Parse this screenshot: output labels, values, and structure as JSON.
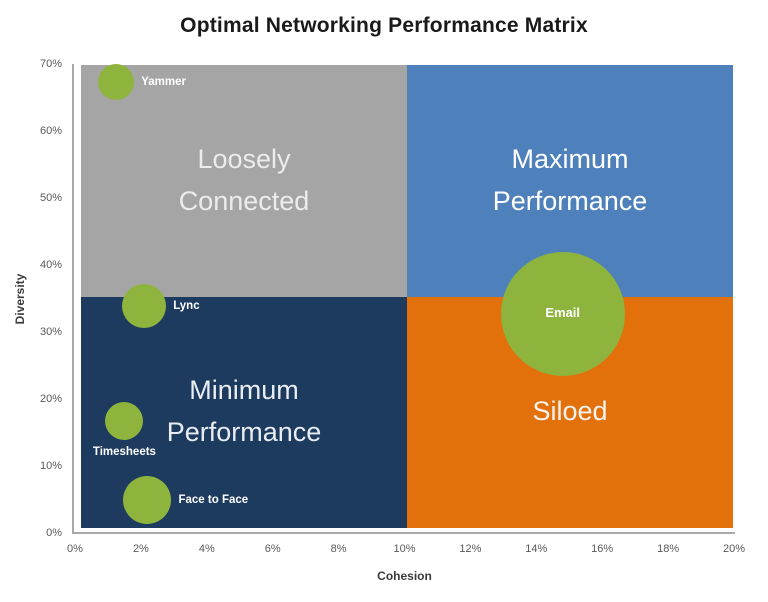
{
  "title": "Optimal Networking Performance Matrix",
  "chart_data": {
    "type": "scatter",
    "subtype": "bubble-quadrant-matrix",
    "title": "Optimal Networking Performance Matrix",
    "xlabel": "Cohesion",
    "ylabel": "Diversity",
    "xlim": [
      0,
      20
    ],
    "ylim": [
      0,
      70
    ],
    "x_tick_labels": [
      "0%",
      "2%",
      "4%",
      "6%",
      "8%",
      "10%",
      "12%",
      "14%",
      "16%",
      "18%",
      "20%"
    ],
    "x_tick_values": [
      0,
      2,
      4,
      6,
      8,
      10,
      12,
      14,
      16,
      18,
      20
    ],
    "y_tick_labels": [
      "0%",
      "10%",
      "20%",
      "30%",
      "40%",
      "50%",
      "60%",
      "70%"
    ],
    "y_tick_values": [
      0,
      10,
      20,
      30,
      40,
      50,
      60,
      70
    ],
    "grid": false,
    "legend": "none",
    "quadrant_split": {
      "x_percent": 10,
      "y_percent": 35
    },
    "quadrants": [
      {
        "position": "top-left",
        "label": "Loosely Connected",
        "color": "#A5A5A5",
        "text_color": "#ECECEC"
      },
      {
        "position": "top-right",
        "label": "Maximum Performance",
        "color": "#4E80BC",
        "text_color": "#FFFFFF"
      },
      {
        "position": "bottom-left",
        "label": "Minimum Performance",
        "color": "#1D3A5F",
        "text_color": "#E9EDF2"
      },
      {
        "position": "bottom-right",
        "label": "Siloed",
        "color": "#E2700B",
        "text_color": "#F7F2ED"
      }
    ],
    "points": [
      {
        "label": "Yammer",
        "x": 1.25,
        "y": 67.3,
        "radius_px": 18,
        "label_position": "right"
      },
      {
        "label": "Lync",
        "x": 2.1,
        "y": 33.9,
        "radius_px": 22,
        "label_position": "right"
      },
      {
        "label": "Timesheets",
        "x": 1.5,
        "y": 16.7,
        "radius_px": 19,
        "label_position": "below"
      },
      {
        "label": "Face to Face",
        "x": 2.2,
        "y": 4.9,
        "radius_px": 24,
        "label_position": "right"
      },
      {
        "label": "Email",
        "x": 14.8,
        "y": 32.7,
        "radius_px": 62,
        "label_position": "center"
      }
    ],
    "bubble_color": "#8EB43D",
    "bubble_label_color": "#FFFFFF",
    "axis_line_color": "#A9A9A9"
  }
}
